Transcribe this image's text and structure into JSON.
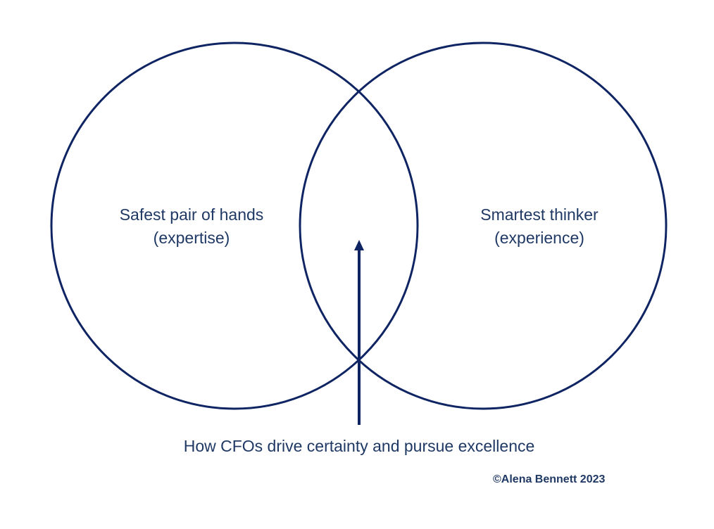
{
  "diagram": {
    "type": "venn",
    "left_circle": {
      "line1": "Safest pair of hands",
      "line2": "(expertise)"
    },
    "right_circle": {
      "line1": "Smartest thinker",
      "line2": "(experience)"
    },
    "intersection_caption": "How CFOs drive certainty and pursue excellence",
    "copyright": "©Alena Bennett 2023",
    "colors": {
      "stroke": "#0f2463",
      "text": "#1f3864"
    }
  }
}
